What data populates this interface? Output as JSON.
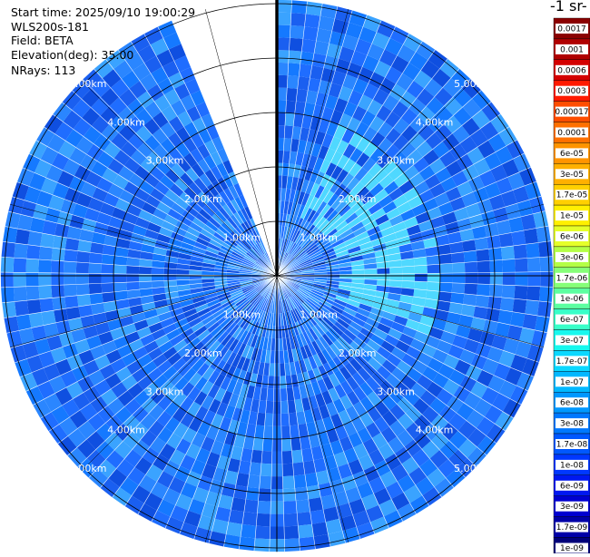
{
  "header": {
    "start_time": "Start time: 2025/09/10 19:00:29",
    "instrument": "WLS200s-181",
    "field": "Field: BETA",
    "elevation": "Elevation(deg): 35.00",
    "nrays": "NRays: 113"
  },
  "colorbar": {
    "title_fragment": "-1 sr-",
    "labels": [
      "0.0017",
      "0.001",
      "0.0006",
      "0.0003",
      "0.00017",
      "0.0001",
      "6e-05",
      "3e-05",
      "1.7e-05",
      "1e-05",
      "6e-06",
      "3e-06",
      "1.7e-06",
      "1e-06",
      "6e-07",
      "3e-07",
      "1.7e-07",
      "1e-07",
      "6e-08",
      "3e-08",
      "1.7e-08",
      "1e-08",
      "6e-09",
      "3e-09",
      "1.7e-09",
      "1e-09"
    ],
    "colors": [
      "#8b0000",
      "#b00000",
      "#d40000",
      "#ff1a00",
      "#ff4d00",
      "#ff7000",
      "#ff9400",
      "#ffb000",
      "#ffd000",
      "#fff000",
      "#e6ff2a",
      "#b4ff46",
      "#86ff78",
      "#5cffa0",
      "#38ffc8",
      "#16f8ee",
      "#0ad8ff",
      "#00b8ff",
      "#0098ff",
      "#0078ff",
      "#0058ff",
      "#0038ff",
      "#0018f0",
      "#0000d0",
      "#0000a8",
      "#00007a"
    ]
  },
  "chart_data": {
    "type": "heatmap",
    "projection": "polar (PPI)",
    "field": "BETA",
    "elevation_deg": 35.0,
    "n_rays": 113,
    "range_rings_km": [
      1.0,
      2.0,
      3.0,
      4.0,
      5.0
    ],
    "ring_labels": [
      "1.00km",
      "2.00km",
      "3.00km",
      "4.00km",
      "5.00km"
    ],
    "missing_sector_azimuth_deg": [
      336,
      360
    ],
    "dominant_value_range": [
      "1.7e-08",
      "1.7e-07"
    ],
    "colorbar_scale": "log",
    "colorbar_range": [
      "1e-09",
      "0.0017"
    ]
  }
}
